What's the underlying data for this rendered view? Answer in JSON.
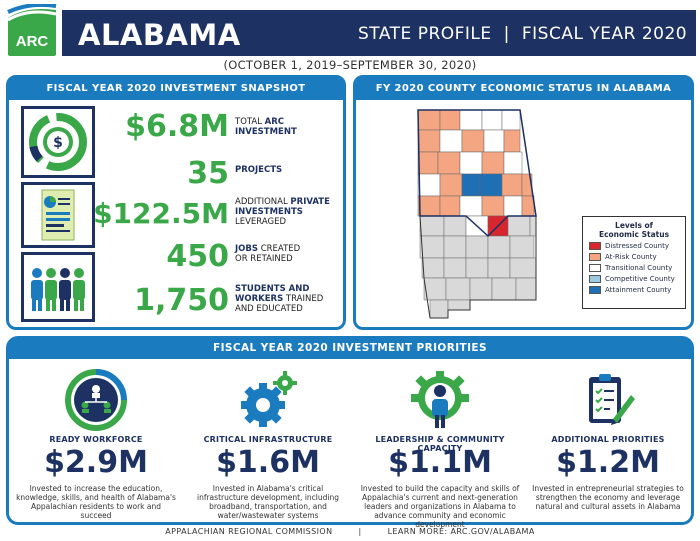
{
  "header": {
    "logo_text": "ARC",
    "state": "ALABAMA",
    "profile_label": "STATE PROFILE",
    "separator": "|",
    "fiscal_year": "FISCAL YEAR 2020",
    "date_range": "(OCTOBER 1, 2019–SEPTEMBER 30, 2020)"
  },
  "snapshot": {
    "title": "FISCAL YEAR 2020 INVESTMENT SNAPSHOT",
    "stats": [
      {
        "value": "$6.8M",
        "pre": "TOTAL ",
        "bold": "ARC",
        "post": "",
        "line2_bold": "INVESTMENT",
        "line2": ""
      },
      {
        "value": "35",
        "pre": "",
        "bold": "PROJECTS",
        "post": "",
        "line2_bold": "",
        "line2": ""
      },
      {
        "value": "$122.5M",
        "pre": "ADDITIONAL ",
        "bold": "PRIVATE",
        "post": "",
        "line2_bold": "INVESTMENTS",
        "line2": "",
        "line3": "LEVERAGED"
      },
      {
        "value": "450",
        "pre": "",
        "bold": "JOBS",
        "post": " CREATED",
        "line2_bold": "",
        "line2": "OR RETAINED"
      },
      {
        "value": "1,750",
        "pre": "",
        "bold": "STUDENTS AND",
        "post": "",
        "line2_bold": "WORKERS",
        "line2": " TRAINED",
        "line3": "AND EDUCATED"
      }
    ],
    "icons": [
      "dollar-coin-icon",
      "document-report-icon",
      "people-group-icon"
    ]
  },
  "map": {
    "title": "FY 2020 COUNTY ECONOMIC STATUS IN ALABAMA",
    "legend_title_1": "Levels of",
    "legend_title_2": "Economic Status",
    "legend": [
      {
        "label": "Distressed County",
        "color": "#d7262e"
      },
      {
        "label": "At-Risk County",
        "color": "#f4a582"
      },
      {
        "label": "Transitional County",
        "color": "#ffffff"
      },
      {
        "label": "Competitive County",
        "color": "#9ecae1"
      },
      {
        "label": "Attainment County",
        "color": "#1f6fb4"
      }
    ],
    "non_arc_color": "#d9d9d9"
  },
  "priorities": {
    "title": "FISCAL YEAR 2020 INVESTMENT PRIORITIES",
    "items": [
      {
        "title": "READY WORKFORCE",
        "value": "$2.9M",
        "desc": "Invested to increase the education, knowledge, skills, and health of Alabama's Appalachian residents to work and succeed",
        "icon": "workforce-network-icon"
      },
      {
        "title": "CRITICAL INFRASTRUCTURE",
        "value": "$1.6M",
        "desc": "Invested in Alabama's critical infrastructure development, including broadband, transportation, and water/wastewater systems",
        "icon": "gears-icon"
      },
      {
        "title": "LEADERSHIP & COMMUNITY CAPACITY",
        "value": "$1.1M",
        "desc": "Invested to build the capacity and skills of Appalachia's current and next-generation leaders and organizations in Alabama to advance community and economic development",
        "icon": "leader-gear-icon"
      },
      {
        "title": "ADDITIONAL PRIORITIES",
        "value": "$1.2M",
        "desc": "Invested in entrepreneurial strategies to strengthen the economy and leverage natural and cultural assets in Alabama",
        "icon": "clipboard-checklist-icon"
      }
    ]
  },
  "footer": {
    "org": "APPALACHIAN REGIONAL COMMISSION",
    "separator": "|",
    "link": "LEARN MORE: ARC.GOV/ALABAMA"
  }
}
